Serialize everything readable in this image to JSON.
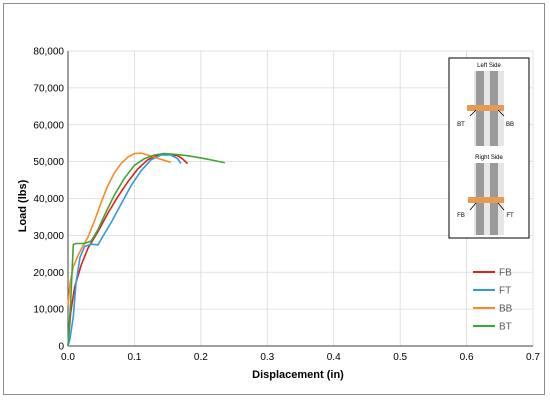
{
  "chart_data": {
    "type": "line",
    "title": "",
    "xlabel": "Displacement (in)",
    "ylabel": "Load (lbs)",
    "xlim": [
      0,
      0.7
    ],
    "ylim": [
      0,
      80000
    ],
    "x_ticks": [
      "0.0",
      "0.1",
      "0.2",
      "0.3",
      "0.4",
      "0.5",
      "0.6",
      "0.7"
    ],
    "y_ticks": [
      "0",
      "10,000",
      "20,000",
      "30,000",
      "40,000",
      "50,000",
      "60,000",
      "70,000",
      "80,000"
    ],
    "grid": true,
    "legend_position": "lower-right",
    "series": [
      {
        "name": "FB",
        "color": "#e0201b",
        "x": [
          0.0,
          0.004,
          0.01,
          0.02,
          0.03,
          0.045,
          0.06,
          0.075,
          0.09,
          0.105,
          0.12,
          0.135,
          0.15,
          0.165,
          0.172,
          0.18
        ],
        "y": [
          0,
          9000,
          16000,
          22000,
          26500,
          31000,
          36000,
          40500,
          44500,
          48000,
          50500,
          51800,
          52000,
          51600,
          50800,
          49500
        ]
      },
      {
        "name": "FT",
        "color": "#2e9be0",
        "x": [
          0.0,
          0.003,
          0.008,
          0.012,
          0.018,
          0.025,
          0.035,
          0.045,
          0.055,
          0.065,
          0.08,
          0.095,
          0.11,
          0.125,
          0.14,
          0.155,
          0.165,
          0.17
        ],
        "y": [
          0,
          2000,
          8000,
          17000,
          24000,
          27000,
          27600,
          27400,
          30500,
          33500,
          38500,
          43500,
          47500,
          50500,
          51800,
          51800,
          50800,
          49500
        ]
      },
      {
        "name": "BB",
        "color": "#f58a2b",
        "x": [
          0.0,
          0.003,
          0.008,
          0.015,
          0.022,
          0.03,
          0.04,
          0.05,
          0.06,
          0.07,
          0.08,
          0.09,
          0.1,
          0.11,
          0.12,
          0.13,
          0.14,
          0.155
        ],
        "y": [
          11000,
          17000,
          21500,
          24500,
          27000,
          29500,
          34000,
          39000,
          43500,
          47000,
          49500,
          51200,
          52200,
          52300,
          51800,
          51200,
          50600,
          49800
        ]
      },
      {
        "name": "BT",
        "color": "#3fa535",
        "x": [
          0.0,
          0.004,
          0.008,
          0.012,
          0.025,
          0.035,
          0.045,
          0.055,
          0.07,
          0.085,
          0.1,
          0.115,
          0.13,
          0.145,
          0.16,
          0.18,
          0.2,
          0.22,
          0.236
        ],
        "y": [
          0,
          12000,
          27500,
          27800,
          27800,
          28500,
          31500,
          35500,
          41000,
          45500,
          49000,
          50800,
          51800,
          52200,
          52000,
          51600,
          51000,
          50300,
          49700
        ]
      }
    ],
    "inset": {
      "top_title": "Left Side",
      "top_left_label": "BT",
      "top_right_label": "BB",
      "bottom_title": "Right Side",
      "bottom_left_label": "FB",
      "bottom_right_label": "FT"
    }
  }
}
